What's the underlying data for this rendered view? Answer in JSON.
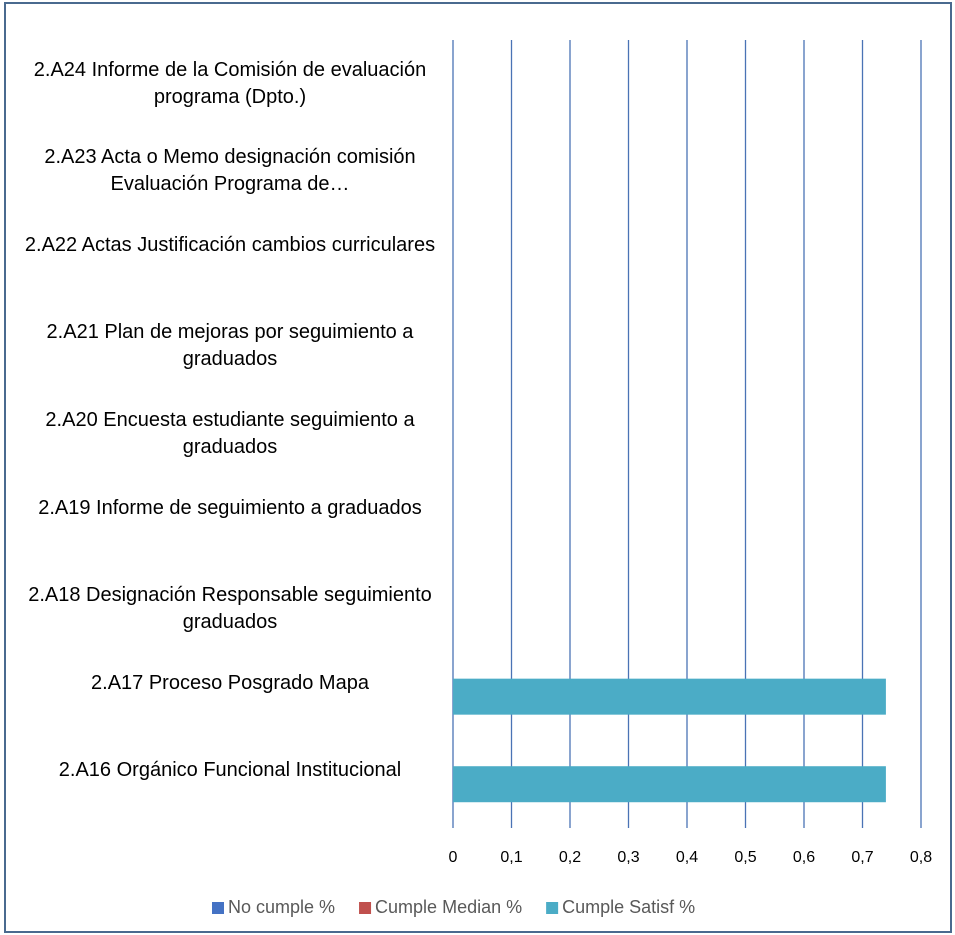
{
  "chart_data": {
    "type": "bar",
    "orientation": "horizontal",
    "categories": [
      "2.A16 Orgánico Funcional Institucional",
      "2.A17 Proceso Posgrado Mapa",
      "2.A18 Designación Responsable seguimiento graduados",
      "2.A19 Informe de seguimiento a graduados",
      "2.A20 Encuesta estudiante seguimiento a graduados",
      "2.A21 Plan de mejoras por seguimiento a graduados",
      "2.A22 Actas Justificación cambios curriculares",
      "2.A23 Acta o Memo designación comisión Evaluación Programa de…",
      "2.A24 Informe de la Comisión de evaluación programa (Dpto.)"
    ],
    "series": [
      {
        "name": "No cumple %",
        "color": "#4472c4",
        "values": [
          0,
          0,
          0,
          0,
          0,
          0,
          0,
          0,
          0
        ]
      },
      {
        "name": "Cumple Median %",
        "color": "#c0504d",
        "values": [
          0,
          0,
          0,
          0,
          0,
          0,
          0,
          0,
          0
        ]
      },
      {
        "name": "Cumple Satisf %",
        "color": "#4bacc6",
        "values": [
          0.74,
          0.74,
          0,
          0,
          0,
          0,
          0,
          0,
          0
        ]
      }
    ],
    "xlim": [
      0,
      0.8
    ],
    "xticks": [
      0,
      {
        "value": 0.1,
        "label": "0,1"
      },
      {
        "value": 0.2,
        "label": "0,2"
      },
      {
        "value": 0.3,
        "label": "0,3"
      },
      {
        "value": 0.4,
        "label": "0,4"
      },
      {
        "value": 0.5,
        "label": "0,5"
      },
      {
        "value": 0.6,
        "label": "0,6"
      },
      {
        "value": 0.7,
        "label": "0,7"
      },
      {
        "value": 0.8,
        "label": "0,8"
      }
    ],
    "grid": true,
    "legend": "bottom"
  }
}
